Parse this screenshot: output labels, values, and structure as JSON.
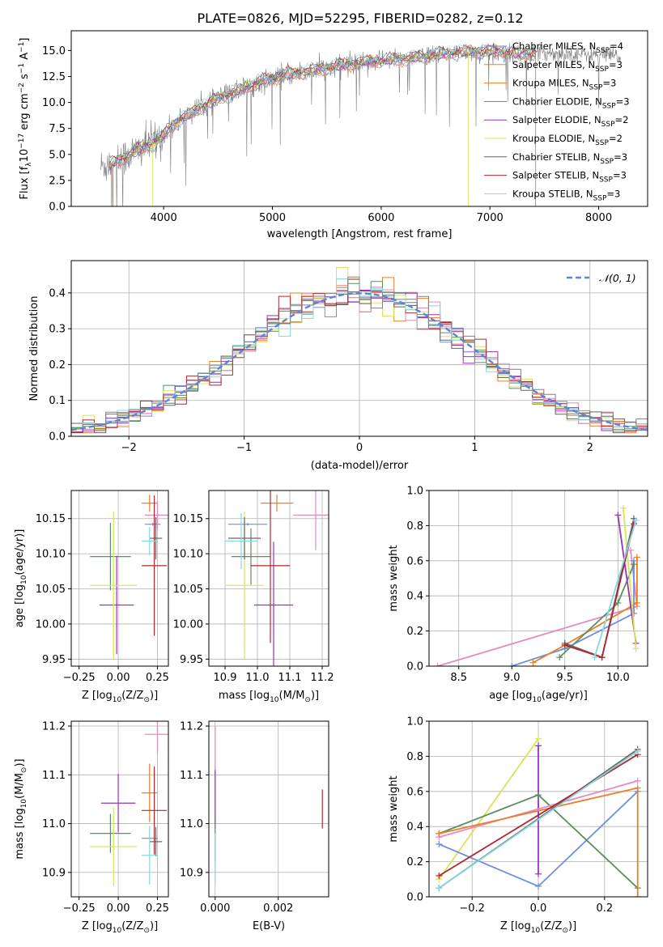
{
  "figure": {
    "title": "PLATE=0826, MJD=52295, FIBERID=0282, z=0.12"
  },
  "chart_data": [
    {
      "id": "spectrum",
      "type": "line",
      "xlabel": "wavelength [Angstrom, rest frame]",
      "ylabel": "Flux [f",
      "ylabel_parts": [
        "Flux [f",
        "λ",
        "10",
        "−17",
        " erg cm",
        "−2",
        " s",
        "−1",
        " A",
        "−1",
        "]"
      ],
      "xlim": [
        3150,
        8450
      ],
      "ylim": [
        0,
        16.9
      ],
      "xticks": [
        4000,
        5000,
        6000,
        7000,
        8000
      ],
      "xtick_labels": [
        "4000",
        "5000",
        "6000",
        "7000",
        "8000"
      ],
      "yticks": [
        0.0,
        2.5,
        5.0,
        7.5,
        10.0,
        12.5,
        15.0
      ],
      "ytick_labels": [
        "0.0",
        "2.5",
        "5.0",
        "7.5",
        "10.0",
        "12.5",
        "15.0"
      ],
      "grid": false,
      "legend_position": "top-right",
      "legend": [
        {
          "base": "Chabrier MILES, N",
          "sub": "SSP",
          "tail": "=4"
        },
        {
          "base": "Salpeter MILES, N",
          "sub": "SSP",
          "tail": "=3"
        },
        {
          "base": "Kroupa MILES, N",
          "sub": "SSP",
          "tail": "=3"
        },
        {
          "base": "Chabrier ELODIE, N",
          "sub": "SSP",
          "tail": "=3"
        },
        {
          "base": "Salpeter ELODIE, N",
          "sub": "SSP",
          "tail": "=2"
        },
        {
          "base": "Kroupa ELODIE, N",
          "sub": "SSP",
          "tail": "=2"
        },
        {
          "base": "Chabrier STELIB, N",
          "sub": "SSP",
          "tail": "=3"
        },
        {
          "base": "Salpeter STELIB, N",
          "sub": "SSP",
          "tail": "=3"
        },
        {
          "base": "Kroupa STELIB, N",
          "sub": "SSP",
          "tail": "=3"
        }
      ],
      "continuum": {
        "x": [
          3420,
          3600,
          3800,
          3950,
          4100,
          4300,
          4500,
          4700,
          4900,
          5100,
          5300,
          5500,
          5700,
          5900,
          6100,
          6300,
          6500,
          6700,
          6900,
          7100,
          7300,
          7500,
          7700,
          7900,
          8100,
          8200
        ],
        "y": [
          3.8,
          4.5,
          5.6,
          6.4,
          8.0,
          9.3,
          10.4,
          11.2,
          12.0,
          12.6,
          13.0,
          13.3,
          13.7,
          14.0,
          14.1,
          14.3,
          14.6,
          14.8,
          14.9,
          14.9,
          14.7,
          14.8,
          14.7,
          14.6,
          14.5,
          14.4
        ]
      },
      "data_range": [
        3420,
        8200
      ],
      "models_range": [
        3500,
        7420
      ]
    },
    {
      "id": "residuals",
      "type": "histogram",
      "xlabel": "(data-model)/error",
      "ylabel": "Normed distribution",
      "xlim": [
        -2.5,
        2.5
      ],
      "ylim": [
        0,
        0.49
      ],
      "xticks": [
        -2,
        -1,
        0,
        1,
        2
      ],
      "xtick_labels": [
        "−2",
        "−1",
        "0",
        "1",
        "2"
      ],
      "yticks": [
        0.0,
        0.1,
        0.2,
        0.3,
        0.4
      ],
      "ytick_labels": [
        "0.0",
        "0.1",
        "0.2",
        "0.3",
        "0.4"
      ],
      "grid": true,
      "legend_position": "top-right",
      "legend": [
        {
          "label": "𝒩(0, 1)"
        }
      ],
      "bin_width": 0.1,
      "bins_start": -2.5,
      "gaussian": {
        "mean": 0,
        "sigma": 1
      }
    },
    {
      "id": "age-vs-z",
      "type": "errorbar",
      "xlabel": "Z [log",
      "xlabel_parts": [
        "Z [log",
        "10",
        "(Z/Z",
        "⊙",
        ")]"
      ],
      "ylabel_parts": [
        "age  [log",
        "10",
        "(age/yr)]"
      ],
      "xlim": [
        -0.3,
        0.32
      ],
      "ylim": [
        9.94,
        10.19
      ],
      "xticks": [
        -0.25,
        0.0,
        0.25
      ],
      "xtick_labels": [
        "−0.25",
        "0.00",
        "0.25"
      ],
      "yticks": [
        9.95,
        10.0,
        10.05,
        10.1,
        10.15
      ],
      "ytick_labels": [
        "9.95",
        "10.00",
        "10.05",
        "10.10",
        "10.15"
      ],
      "grid": true,
      "points": [
        {
          "x": 0.22,
          "xerr": 0.05,
          "y": 10.142,
          "yerr": 0.0,
          "color": "#6b8ede"
        },
        {
          "x": 0.2,
          "xerr": 0.05,
          "y": 10.172,
          "yerr": 0.012,
          "color": "#e87f2a"
        },
        {
          "x": 0.25,
          "xerr": 0.08,
          "y": 10.155,
          "yerr": 0.02,
          "color": "#e58ac0"
        },
        {
          "x": -0.05,
          "xerr": 0.13,
          "y": 10.096,
          "yerr": 0.048,
          "color": "#5b8f60"
        },
        {
          "x": -0.01,
          "xerr": 0.11,
          "y": 10.027,
          "yerr": 0.07,
          "color": "#9932b8"
        },
        {
          "x": -0.03,
          "xerr": 0.15,
          "y": 10.055,
          "yerr": 0.105,
          "color": "#d9e35a"
        },
        {
          "x": 0.24,
          "xerr": 0.04,
          "y": 10.122,
          "yerr": 0.03,
          "color": "#666666"
        },
        {
          "x": 0.23,
          "xerr": 0.08,
          "y": 10.083,
          "yerr": 0.1,
          "color": "#b0282f"
        },
        {
          "x": 0.2,
          "xerr": 0.05,
          "y": 10.118,
          "yerr": 0.02,
          "color": "#86d8de"
        }
      ]
    },
    {
      "id": "age-vs-mass",
      "type": "errorbar",
      "xlabel_parts": [
        "mass [log",
        "10",
        "(M/M",
        "⊙",
        ")]"
      ],
      "xlim": [
        10.85,
        11.22
      ],
      "ylim": [
        9.94,
        10.19
      ],
      "xticks": [
        10.9,
        11.0,
        11.1,
        11.2
      ],
      "xtick_labels": [
        "10.9",
        "11.0",
        "11.1",
        "11.2"
      ],
      "yticks": [
        9.95,
        10.0,
        10.05,
        10.1,
        10.15
      ],
      "ytick_labels": [
        "9.95",
        "10.00",
        "10.05",
        "10.10",
        "10.15"
      ],
      "grid": true,
      "points": [
        {
          "x": 10.97,
          "xerr": 0.06,
          "y": 10.142,
          "yerr": 0.0,
          "color": "#6b8ede"
        },
        {
          "x": 11.06,
          "xerr": 0.05,
          "y": 10.172,
          "yerr": 0.012,
          "color": "#e87f2a"
        },
        {
          "x": 11.18,
          "xerr": 0.07,
          "y": 10.155,
          "yerr": 0.05,
          "color": "#e58ac0"
        },
        {
          "x": 10.98,
          "xerr": 0.06,
          "y": 10.096,
          "yerr": 0.04,
          "color": "#5b8f60"
        },
        {
          "x": 11.05,
          "xerr": 0.06,
          "y": 10.027,
          "yerr": 0.09,
          "color": "#9932b8"
        },
        {
          "x": 10.96,
          "xerr": 0.06,
          "y": 10.055,
          "yerr": 0.105,
          "color": "#d9e35a"
        },
        {
          "x": 10.96,
          "xerr": 0.05,
          "y": 10.122,
          "yerr": 0.03,
          "color": "#666666"
        },
        {
          "x": 11.04,
          "xerr": 0.06,
          "y": 10.083,
          "yerr": 0.11,
          "color": "#b0282f"
        },
        {
          "x": 10.95,
          "xerr": 0.05,
          "y": 10.118,
          "yerr": 0.04,
          "color": "#86d8de"
        }
      ]
    },
    {
      "id": "weight-vs-age",
      "type": "line",
      "xlabel_parts": [
        "age  [log",
        "10",
        "(age/yr)]"
      ],
      "ylabel": "mass weight",
      "xlim": [
        8.22,
        10.28
      ],
      "ylim": [
        0,
        1.0
      ],
      "xticks": [
        8.5,
        9.0,
        9.5,
        10.0
      ],
      "xtick_labels": [
        "8.5",
        "9.0",
        "9.5",
        "10.0"
      ],
      "yticks": [
        0.0,
        0.2,
        0.4,
        0.6,
        0.8,
        1.0
      ],
      "ytick_labels": [
        "0.0",
        "0.2",
        "0.4",
        "0.6",
        "0.8",
        "1.0"
      ],
      "grid": true,
      "series": [
        {
          "color": "#e58ac0",
          "x": [
            8.3,
            10.18,
            10.12
          ],
          "y": [
            0.0,
            0.34,
            0.66
          ]
        },
        {
          "color": "#6b8ede",
          "x": [
            9.0,
            9.5,
            10.15,
            10.15
          ],
          "y": [
            0.0,
            0.1,
            0.3,
            0.6
          ]
        },
        {
          "color": "#e87f2a",
          "x": [
            9.2,
            9.5,
            10.18,
            10.18
          ],
          "y": [
            0.02,
            0.12,
            0.36,
            0.62
          ]
        },
        {
          "color": "#5b8f60",
          "x": [
            9.45,
            10.0,
            10.15
          ],
          "y": [
            0.05,
            0.36,
            0.58
          ]
        },
        {
          "color": "#9932b8",
          "x": [
            10.0,
            10.17
          ],
          "y": [
            0.86,
            0.13
          ]
        },
        {
          "color": "#d9e35a",
          "x": [
            10.05,
            10.17
          ],
          "y": [
            0.9,
            0.1
          ]
        },
        {
          "color": "#666666",
          "x": [
            9.5,
            9.85,
            10.15
          ],
          "y": [
            0.13,
            0.05,
            0.84
          ]
        },
        {
          "color": "#b0282f",
          "x": [
            9.5,
            9.85,
            10.15
          ],
          "y": [
            0.12,
            0.05,
            0.81
          ]
        },
        {
          "color": "#86d8de",
          "x": [
            9.78,
            10.17
          ],
          "y": [
            0.05,
            0.83
          ]
        }
      ]
    },
    {
      "id": "mass-vs-z",
      "type": "errorbar",
      "xlabel_parts": [
        "Z [log",
        "10",
        "(Z/Z",
        "⊙",
        ")]"
      ],
      "ylabel_parts": [
        "mass [log",
        "10",
        "(M/M",
        "⊙",
        ")]"
      ],
      "xlim": [
        -0.3,
        0.32
      ],
      "ylim": [
        10.85,
        11.21
      ],
      "xticks": [
        -0.25,
        0.0,
        0.25
      ],
      "xtick_labels": [
        "−0.25",
        "0.00",
        "0.25"
      ],
      "yticks": [
        10.9,
        11.0,
        11.1,
        11.2
      ],
      "ytick_labels": [
        "10.9",
        "11.0",
        "11.1",
        "11.2"
      ],
      "grid": true,
      "points": [
        {
          "x": 0.2,
          "xerr": 0.05,
          "y": 10.97,
          "yerr": 0.0,
          "color": "#6b8ede"
        },
        {
          "x": 0.2,
          "xerr": 0.05,
          "y": 11.063,
          "yerr": 0.06,
          "color": "#e87f2a"
        },
        {
          "x": 0.25,
          "xerr": 0.08,
          "y": 11.183,
          "yerr": 0.04,
          "color": "#e58ac0"
        },
        {
          "x": -0.05,
          "xerr": 0.13,
          "y": 10.98,
          "yerr": 0.04,
          "color": "#5b8f60"
        },
        {
          "x": 0.0,
          "xerr": 0.11,
          "y": 11.042,
          "yerr": 0.06,
          "color": "#9932b8"
        },
        {
          "x": -0.03,
          "xerr": 0.15,
          "y": 10.953,
          "yerr": 0.08,
          "color": "#d9e35a"
        },
        {
          "x": 0.24,
          "xerr": 0.04,
          "y": 10.963,
          "yerr": 0.03,
          "color": "#666666"
        },
        {
          "x": 0.23,
          "xerr": 0.08,
          "y": 11.027,
          "yerr": 0.09,
          "color": "#b0282f"
        },
        {
          "x": 0.2,
          "xerr": 0.05,
          "y": 10.935,
          "yerr": 0.06,
          "color": "#86d8de"
        }
      ]
    },
    {
      "id": "mass-vs-ebv",
      "type": "errorbar",
      "xlabel": "E(B-V)",
      "xlim": [
        -0.0002,
        0.0036
      ],
      "ylim": [
        10.85,
        11.21
      ],
      "xticks": [
        0.0,
        0.002
      ],
      "xtick_labels": [
        "0.000",
        "0.002"
      ],
      "yticks": [
        10.9,
        11.0,
        11.1,
        11.2
      ],
      "ytick_labels": [
        "10.9",
        "11.0",
        "11.1",
        "11.2"
      ],
      "grid": true,
      "points": [
        {
          "x": 0.0,
          "xerr": 0,
          "y": 11.1,
          "yerr": 0.1,
          "color": "#e58ac0"
        },
        {
          "x": 0.0,
          "xerr": 0,
          "y": 11.05,
          "yerr": 0.06,
          "color": "#9932b8"
        },
        {
          "x": 0.0,
          "xerr": 0,
          "y": 10.96,
          "yerr": 0.04,
          "color": "#5b8f60"
        },
        {
          "x": 0.0,
          "xerr": 0,
          "y": 10.93,
          "yerr": 0.05,
          "color": "#86d8de"
        },
        {
          "x": 0.0034,
          "xerr": 0,
          "y": 11.03,
          "yerr": 0.04,
          "color": "#b0282f"
        }
      ]
    },
    {
      "id": "weight-vs-z",
      "type": "line",
      "xlabel_parts": [
        "Z [log",
        "10",
        "(Z/Z",
        "⊙",
        ")]"
      ],
      "ylabel": "mass weight",
      "xlim": [
        -0.33,
        0.33
      ],
      "ylim": [
        0,
        1.0
      ],
      "xticks": [
        -0.2,
        0.0,
        0.2
      ],
      "xtick_labels": [
        "−0.2",
        "0.0",
        "0.2"
      ],
      "yticks": [
        0.0,
        0.2,
        0.4,
        0.6,
        0.8,
        1.0
      ],
      "ytick_labels": [
        "0.0",
        "0.2",
        "0.4",
        "0.6",
        "0.8",
        "1.0"
      ],
      "grid": true,
      "series": [
        {
          "color": "#d9e35a",
          "x": [
            -0.3,
            0.0
          ],
          "y": [
            0.1,
            0.9
          ]
        },
        {
          "color": "#9932b8",
          "x": [
            0.0,
            0.0
          ],
          "y": [
            0.86,
            0.13
          ]
        },
        {
          "color": "#6b8ede",
          "x": [
            -0.3,
            0.0,
            0.3
          ],
          "y": [
            0.3,
            0.06,
            0.6
          ]
        },
        {
          "color": "#5b8f60",
          "x": [
            -0.3,
            0.0,
            0.3
          ],
          "y": [
            0.36,
            0.58,
            0.05
          ]
        },
        {
          "color": "#e58ac0",
          "x": [
            -0.3,
            0.3
          ],
          "y": [
            0.34,
            0.66
          ]
        },
        {
          "color": "#e87f2a",
          "x": [
            -0.3,
            0.3,
            0.3
          ],
          "y": [
            0.36,
            0.62,
            0.0
          ]
        },
        {
          "color": "#666666",
          "x": [
            -0.3,
            0.3
          ],
          "y": [
            0.05,
            0.84
          ]
        },
        {
          "color": "#b0282f",
          "x": [
            -0.3,
            0.3
          ],
          "y": [
            0.12,
            0.81
          ]
        },
        {
          "color": "#86d8de",
          "x": [
            -0.3,
            0.3
          ],
          "y": [
            0.05,
            0.83
          ]
        }
      ]
    }
  ],
  "palette": [
    "#6b8ede",
    "#e87f2a",
    "#e58ac0",
    "#5b8f60",
    "#9932b8",
    "#d9e35a",
    "#666666",
    "#b0282f",
    "#86d8de",
    "#808080"
  ]
}
